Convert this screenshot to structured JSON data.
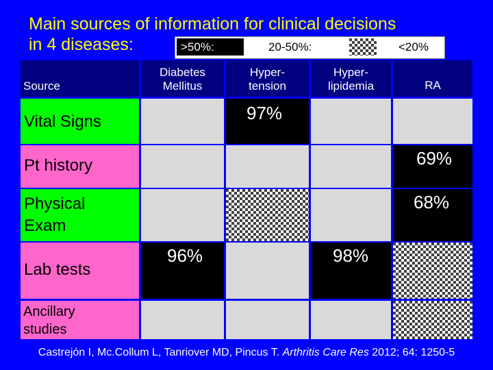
{
  "title": {
    "line1": "Main sources of information for clinical decisions",
    "line2": "in 4 diseases:"
  },
  "legend": {
    "high": ">50%:",
    "mid": "20-50%:",
    "low": "<20%"
  },
  "header": {
    "source": "Source",
    "diabetes_line1": "Diabetes",
    "diabetes_line2": "Mellitus",
    "hypertension_line1": "Hyper-",
    "hypertension_line2": "tension",
    "hyperlipidemia_line1": "Hyper-",
    "hyperlipidemia_line2": "lipidemia",
    "ra": "RA"
  },
  "rows": {
    "vital_signs": "Vital Signs",
    "pt_history": "Pt history",
    "physical_exam_line1": "Physical",
    "physical_exam_line2": "Exam",
    "lab_tests": "Lab tests",
    "ancillary_line1": "Ancillary",
    "ancillary_line2": "studies"
  },
  "values": {
    "vital_signs_hypertension": "97%",
    "pt_history_ra": "69%",
    "physical_exam_ra": "68%",
    "lab_tests_diabetes": "96%",
    "lab_tests_hyperlipidemia": "98%"
  },
  "footer": {
    "authors": "Castrejón I, Mc.Collum L, Tanriover MD, Pincus T. ",
    "journal": "Arthritis Care Res",
    "citation": " 2012; 64: 1250-5"
  },
  "colors": {
    "background": "#0000ff",
    "title": "#ffff00",
    "header": "#000080",
    "high": "#000000",
    "mid": "checkered",
    "low": "#d9d9d9",
    "label_green": "#00ff00",
    "label_pink": "#ff66cc"
  }
}
